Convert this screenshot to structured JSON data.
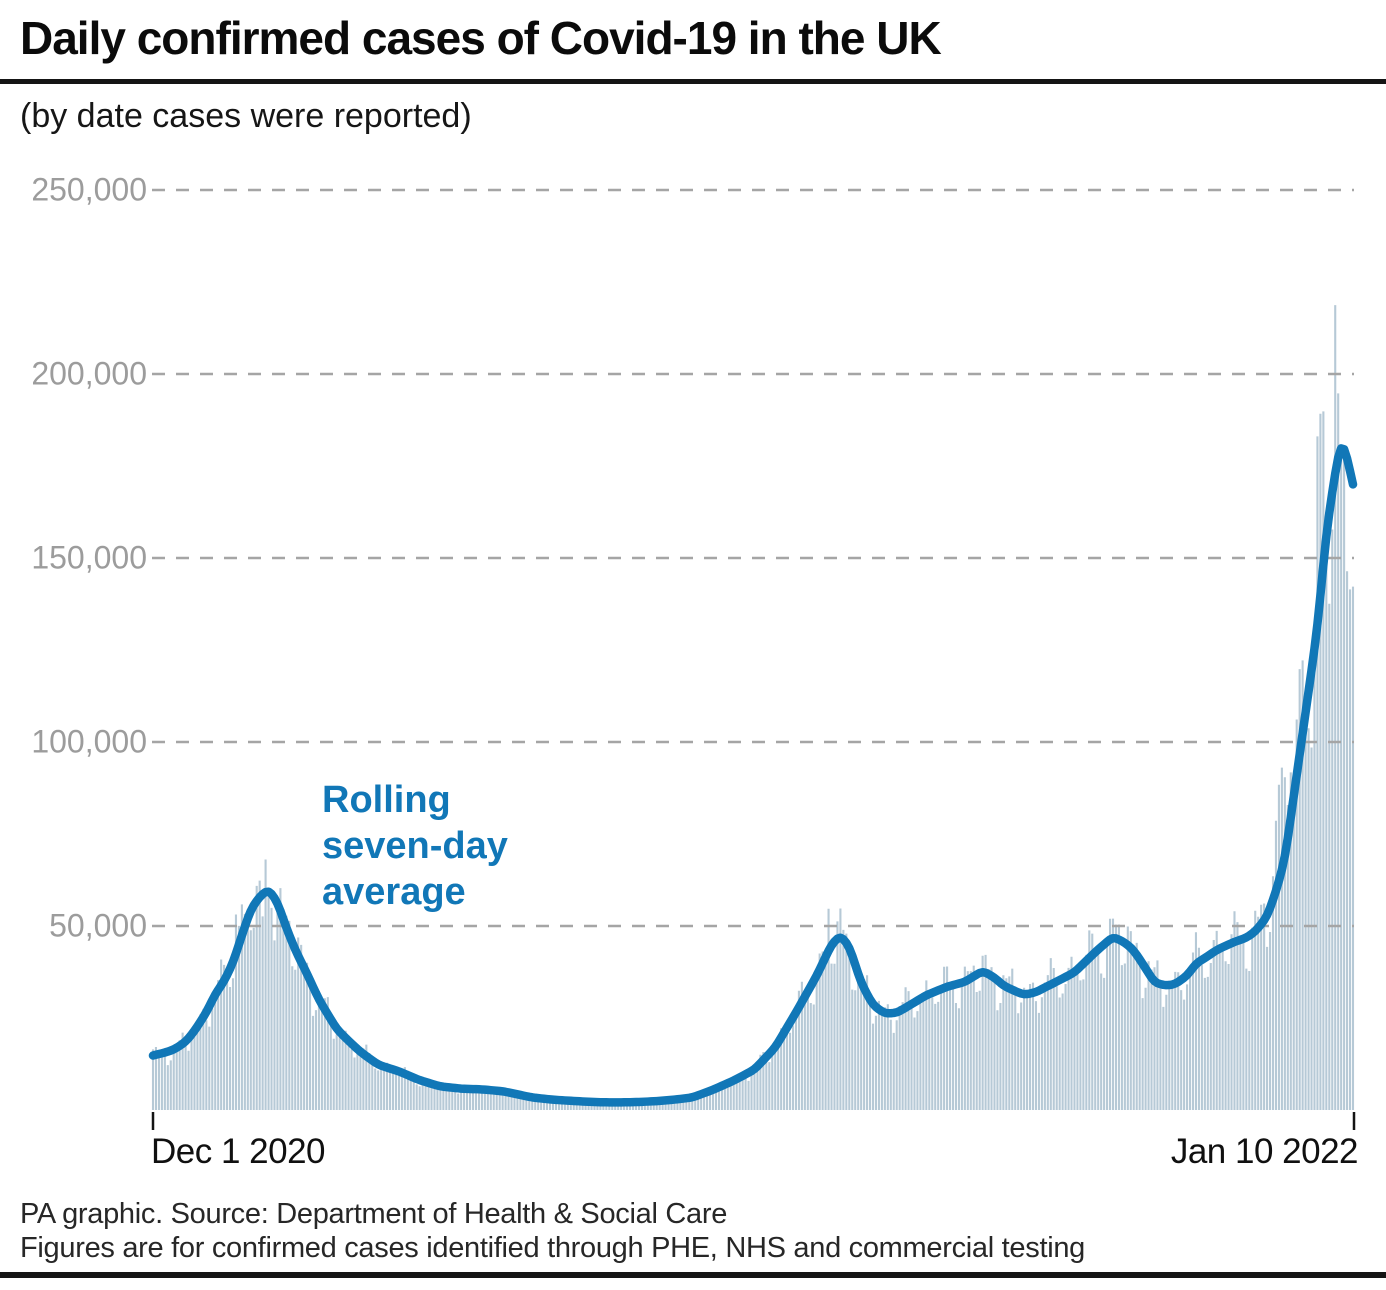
{
  "title": "Daily confirmed cases of Covid-19 in the UK",
  "subtitle": "(by date cases were reported)",
  "annotation": {
    "line1": "Rolling",
    "line2": "seven-day",
    "line3": "average"
  },
  "footer": {
    "line1": "PA graphic. Source: Department of Health & Social Care",
    "line2": "Figures are for confirmed cases identified through PHE, NHS and commercial testing"
  },
  "colors": {
    "bar": "#b6c9d6",
    "line": "#1177b7",
    "annotation_text": "#1177b7",
    "grid": "#a5a5a5",
    "axis_label": "#9c9c9c",
    "tick": "#141414"
  },
  "chart_data": {
    "type": "bar+line",
    "title": "Daily confirmed cases of Covid-19 in the UK",
    "subtitle": "(by date cases were reported)",
    "x_axis": {
      "start_label": "Dec 1 2020",
      "end_label": "Jan 10 2022",
      "days": 406
    },
    "y_axis": {
      "ticks": [
        250000,
        200000,
        150000,
        100000,
        50000
      ],
      "tick_labels": [
        "250,000",
        "200,000",
        "150,000",
        "100,000",
        "50,000"
      ],
      "min": 0,
      "max": 250000,
      "grid": "dashed"
    },
    "series": [
      {
        "name": "Daily confirmed cases",
        "type": "bar",
        "note": "daily bars generated from rolling average anchors x weekday factors, with reported outliers overridden",
        "weekday_factors": [
          1.04,
          1.09,
          1.11,
          1.08,
          1.0,
          0.84,
          0.88
        ],
        "overrides": {
          "28": 53135,
          "29": 50023,
          "30": 55892,
          "31": 53285,
          "35": 60916,
          "36": 62322,
          "37": 52618,
          "38": 68053,
          "39": 59937,
          "40": 54940,
          "228": 54674,
          "324": 52009,
          "379": 78610,
          "380": 88376,
          "381": 93045,
          "382": 90418,
          "383": 82886,
          "384": 91743,
          "385": 90629,
          "386": 106122,
          "387": 119789,
          "388": 122186,
          "389": 113628,
          "390": 103741,
          "391": 98515,
          "392": 129471,
          "393": 183037,
          "394": 189213,
          "395": 189846,
          "396": 162572,
          "397": 137583,
          "398": 157758,
          "399": 218724,
          "400": 194747,
          "401": 179756,
          "402": 178250,
          "403": 146390,
          "404": 141472,
          "405": 142224
        }
      },
      {
        "name": "Rolling seven-day average",
        "type": "line",
        "anchors": [
          [
            0,
            14800
          ],
          [
            4,
            15600
          ],
          [
            7,
            16400
          ],
          [
            11,
            18500
          ],
          [
            14,
            21500
          ],
          [
            18,
            26500
          ],
          [
            21,
            31500
          ],
          [
            24,
            35000
          ],
          [
            27,
            40000
          ],
          [
            30,
            47500
          ],
          [
            33,
            54500
          ],
          [
            36,
            58000
          ],
          [
            39,
            60000
          ],
          [
            42,
            56500
          ],
          [
            45,
            49500
          ],
          [
            48,
            43500
          ],
          [
            52,
            37000
          ],
          [
            56,
            30000
          ],
          [
            62,
            22000
          ],
          [
            66,
            18800
          ],
          [
            70,
            15800
          ],
          [
            76,
            12300
          ],
          [
            83,
            10500
          ],
          [
            90,
            8100
          ],
          [
            97,
            6400
          ],
          [
            104,
            5800
          ],
          [
            111,
            5600
          ],
          [
            118,
            5100
          ],
          [
            121,
            4600
          ],
          [
            128,
            3400
          ],
          [
            135,
            2800
          ],
          [
            142,
            2450
          ],
          [
            149,
            2150
          ],
          [
            156,
            2050
          ],
          [
            163,
            2150
          ],
          [
            170,
            2400
          ],
          [
            177,
            2900
          ],
          [
            182,
            3400
          ],
          [
            189,
            5500
          ],
          [
            196,
            8000
          ],
          [
            203,
            11000
          ],
          [
            210,
            17000
          ],
          [
            217,
            26500
          ],
          [
            224,
            36500
          ],
          [
            229,
            45000
          ],
          [
            232,
            47500
          ],
          [
            235,
            44500
          ],
          [
            239,
            34500
          ],
          [
            243,
            28500
          ],
          [
            247,
            26200
          ],
          [
            251,
            26400
          ],
          [
            254,
            27800
          ],
          [
            261,
            31200
          ],
          [
            268,
            33500
          ],
          [
            274,
            34800
          ],
          [
            280,
            37800
          ],
          [
            284,
            36000
          ],
          [
            287,
            33800
          ],
          [
            291,
            32300
          ],
          [
            294,
            31300
          ],
          [
            298,
            32000
          ],
          [
            301,
            33300
          ],
          [
            304,
            34500
          ],
          [
            311,
            37400
          ],
          [
            318,
            42900
          ],
          [
            324,
            47100
          ],
          [
            328,
            45500
          ],
          [
            331,
            43400
          ],
          [
            335,
            38500
          ],
          [
            338,
            34600
          ],
          [
            342,
            33800
          ],
          [
            345,
            34200
          ],
          [
            349,
            36500
          ],
          [
            352,
            39800
          ],
          [
            356,
            41800
          ],
          [
            359,
            43500
          ],
          [
            365,
            45700
          ],
          [
            369,
            46800
          ],
          [
            372,
            48500
          ],
          [
            376,
            52500
          ],
          [
            379,
            59400
          ],
          [
            382,
            68000
          ],
          [
            386,
            91000
          ],
          [
            389,
            108000
          ],
          [
            393,
            131000
          ],
          [
            396,
            157000
          ],
          [
            398,
            168000
          ],
          [
            400,
            178000
          ],
          [
            401,
            182000
          ],
          [
            402,
            180500
          ],
          [
            403,
            177500
          ],
          [
            404,
            173500
          ],
          [
            405,
            170000
          ]
        ]
      }
    ]
  }
}
